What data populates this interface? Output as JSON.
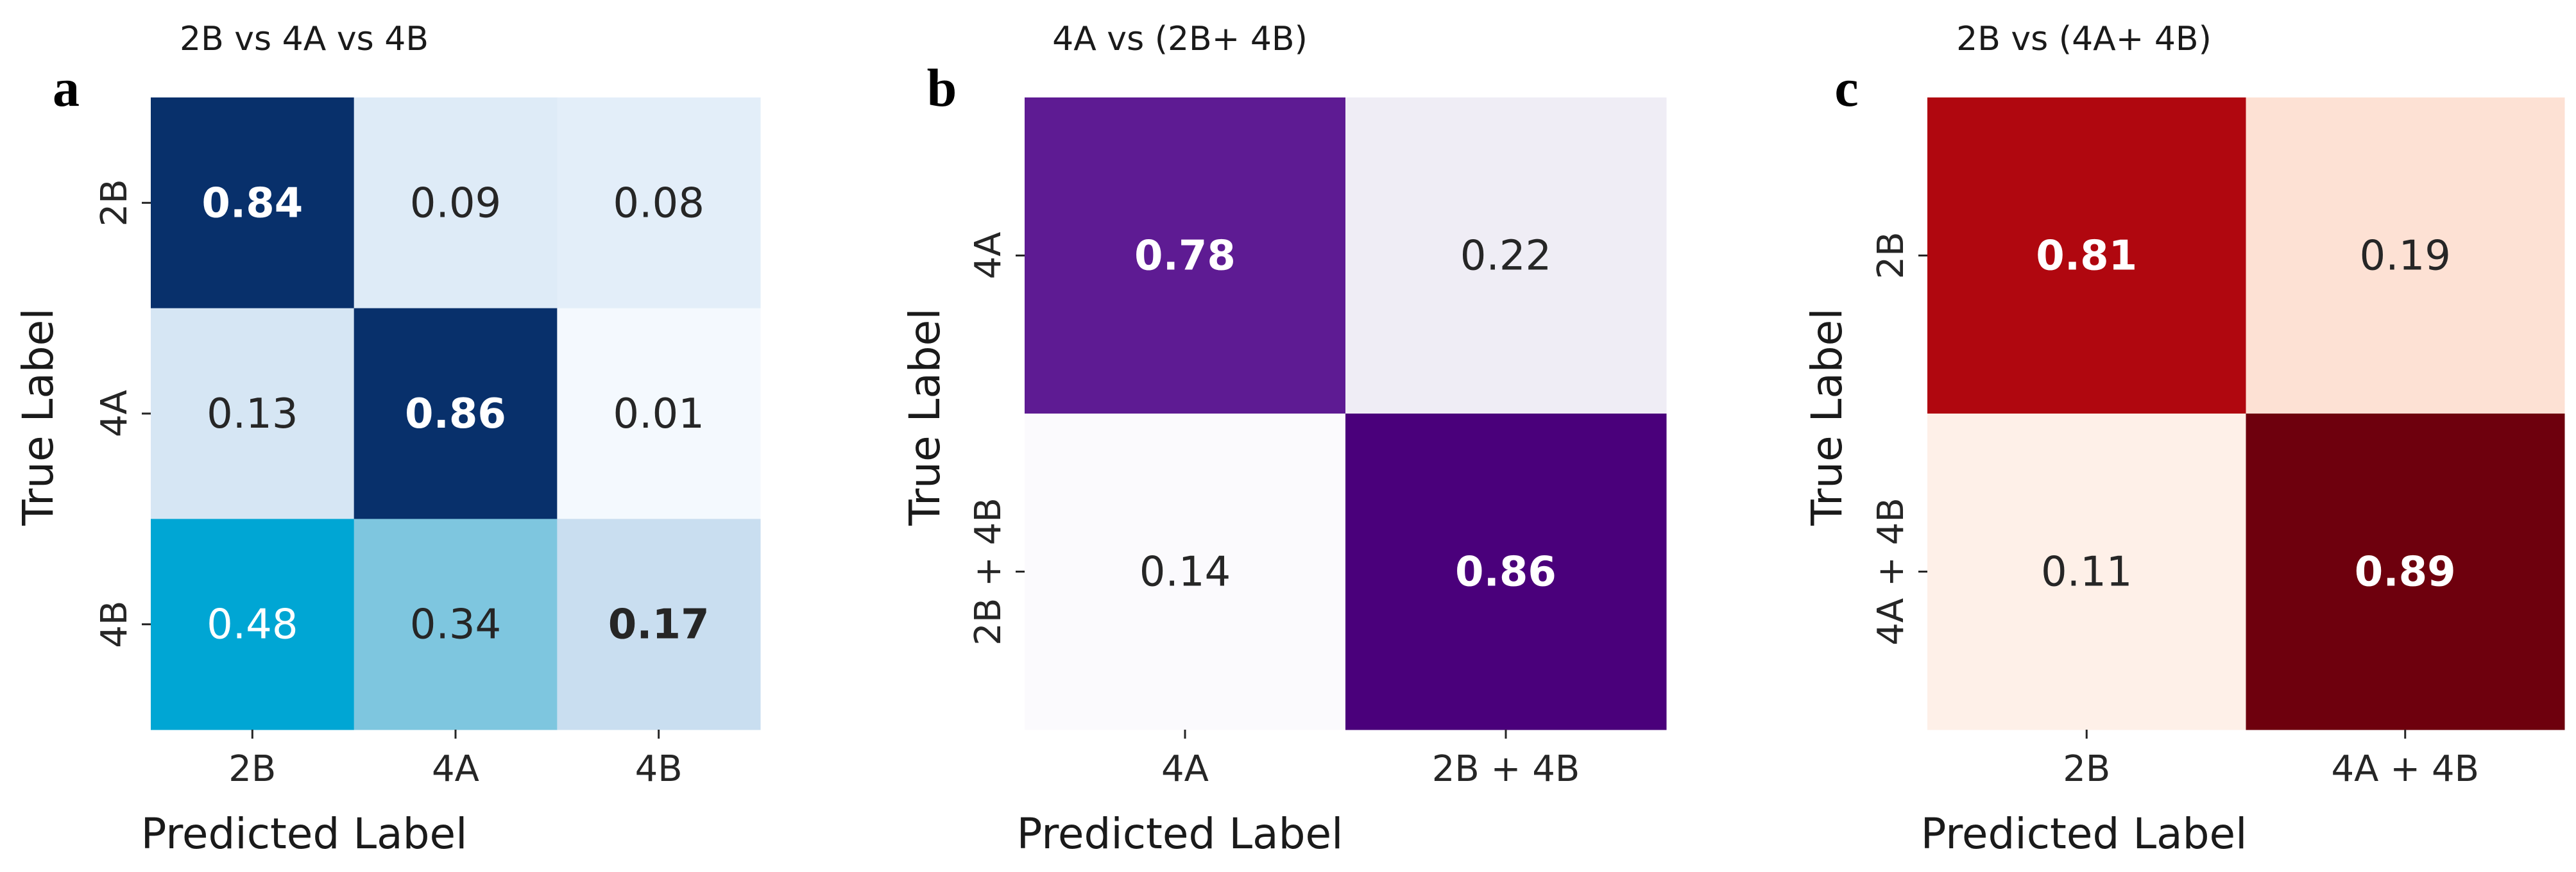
{
  "chart_data": [
    {
      "type": "heatmap",
      "panel": "a",
      "title": "2B vs 4A vs 4B",
      "xlabel": "Predicted Label",
      "ylabel": "True Label",
      "x_categories": [
        "2B",
        "4A",
        "4B"
      ],
      "y_categories": [
        "2B",
        "4A",
        "4B"
      ],
      "values": [
        [
          0.84,
          0.09,
          0.08
        ],
        [
          0.13,
          0.86,
          0.01
        ],
        [
          0.48,
          0.34,
          0.17
        ]
      ],
      "labels": [
        [
          "0.84",
          "0.09",
          "0.08"
        ],
        [
          "0.13",
          "0.86",
          "0.01"
        ],
        [
          "0.48",
          "0.34",
          "0.17"
        ]
      ],
      "bold": [
        [
          true,
          false,
          false
        ],
        [
          false,
          true,
          false
        ],
        [
          false,
          false,
          true
        ]
      ],
      "cell_colors": [
        [
          "#08306b",
          "#deebf7",
          "#e3eef9"
        ],
        [
          "#d6e6f4",
          "#08306b",
          "#f4f9fe"
        ],
        [
          "#00a6d4",
          "#7ec6df",
          "#c9def0"
        ]
      ],
      "text_colors": [
        [
          "#ffffff",
          "#262626",
          "#262626"
        ],
        [
          "#262626",
          "#ffffff",
          "#262626"
        ],
        [
          "#ffffff",
          "#262626",
          "#262626"
        ]
      ],
      "colormap": "Blues"
    },
    {
      "type": "heatmap",
      "panel": "b",
      "title": "4A vs (2B+ 4B)",
      "xlabel": "Predicted Label",
      "ylabel": "True Label",
      "x_categories": [
        "4A",
        "2B + 4B"
      ],
      "y_categories": [
        "4A",
        "2B + 4B"
      ],
      "values": [
        [
          0.78,
          0.22
        ],
        [
          0.14,
          0.86
        ]
      ],
      "labels": [
        [
          "0.78",
          "0.22"
        ],
        [
          "0.14",
          "0.86"
        ]
      ],
      "bold": [
        [
          true,
          false
        ],
        [
          false,
          true
        ]
      ],
      "cell_colors": [
        [
          "#5e1b93",
          "#efedf5"
        ],
        [
          "#fbfafd",
          "#4a007b"
        ]
      ],
      "text_colors": [
        [
          "#ffffff",
          "#262626"
        ],
        [
          "#262626",
          "#ffffff"
        ]
      ],
      "colormap": "Purples"
    },
    {
      "type": "heatmap",
      "panel": "c",
      "title": "2B vs (4A+ 4B)",
      "xlabel": "Predicted Label",
      "ylabel": "True Label",
      "x_categories": [
        "2B",
        "4A + 4B"
      ],
      "y_categories": [
        "2B",
        "4A + 4B"
      ],
      "values": [
        [
          0.81,
          0.19
        ],
        [
          0.11,
          0.89
        ]
      ],
      "labels": [
        [
          "0.81",
          "0.19"
        ],
        [
          "0.11",
          "0.89"
        ]
      ],
      "bold": [
        [
          true,
          false
        ],
        [
          false,
          true
        ]
      ],
      "cell_colors": [
        [
          "#b0070f",
          "#fde1d4"
        ],
        [
          "#fef0e8",
          "#6e000d"
        ]
      ],
      "text_colors": [
        [
          "#ffffff",
          "#262626"
        ],
        [
          "#262626",
          "#ffffff"
        ]
      ],
      "colormap": "Reds"
    }
  ]
}
